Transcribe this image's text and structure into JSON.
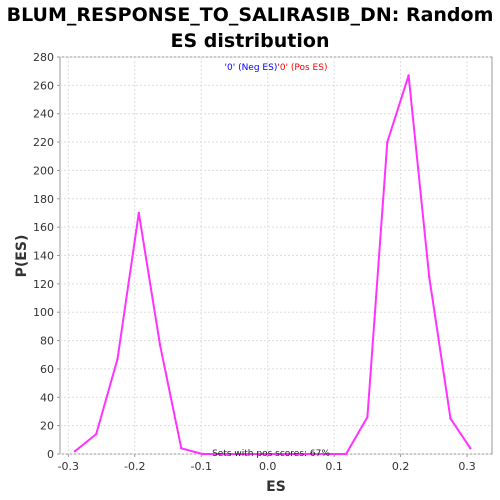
{
  "chart_data": {
    "type": "line",
    "title": "BLUM_RESPONSE_TO_SALIRASIB_DN: Random ES distribution",
    "title_line1": "BLUM_RESPONSE_TO_SALIRASIB_DN: Random",
    "title_line2": "ES distribution",
    "xlabel": "ES",
    "ylabel": "P(ES)",
    "xlim": [
      -0.3125,
      0.3375
    ],
    "ylim": [
      0,
      280
    ],
    "xticks": [
      -0.3,
      -0.2,
      -0.1,
      0.0,
      0.1,
      0.2,
      0.3
    ],
    "xtick_labels": [
      "-0.3",
      "-0.2",
      "-0.1",
      "0.0",
      "0.1",
      "0.2",
      "0.3"
    ],
    "yticks": [
      0,
      20,
      40,
      60,
      80,
      100,
      120,
      140,
      160,
      180,
      200,
      220,
      240,
      260,
      280
    ],
    "ytick_labels": [
      "0",
      "20",
      "40",
      "60",
      "80",
      "100",
      "120",
      "140",
      "160",
      "180",
      "200",
      "220",
      "240",
      "260",
      "280"
    ],
    "grid": true,
    "legend": {
      "placement": "top-center",
      "entries": [
        {
          "text": "'0' (Neg ES)",
          "color": "#0000ff"
        },
        {
          "text": "'0' (Pos ES)",
          "color": "#ff0000"
        }
      ]
    },
    "annotation": "Sets with pos scores: 67%",
    "series": [
      {
        "color": "#ff33ff",
        "x": [
          -0.29,
          -0.258,
          -0.226,
          -0.194,
          -0.162,
          -0.13,
          -0.098,
          -0.066,
          -0.034,
          -0.002,
          0.03,
          0.062,
          0.094,
          0.118,
          0.15,
          0.18,
          0.212,
          0.243,
          0.275,
          0.305
        ],
        "y": [
          2,
          14,
          67,
          170,
          77,
          4,
          0,
          0,
          0,
          0,
          0,
          0,
          0,
          0,
          26,
          220,
          267,
          125,
          25,
          4
        ]
      }
    ]
  }
}
